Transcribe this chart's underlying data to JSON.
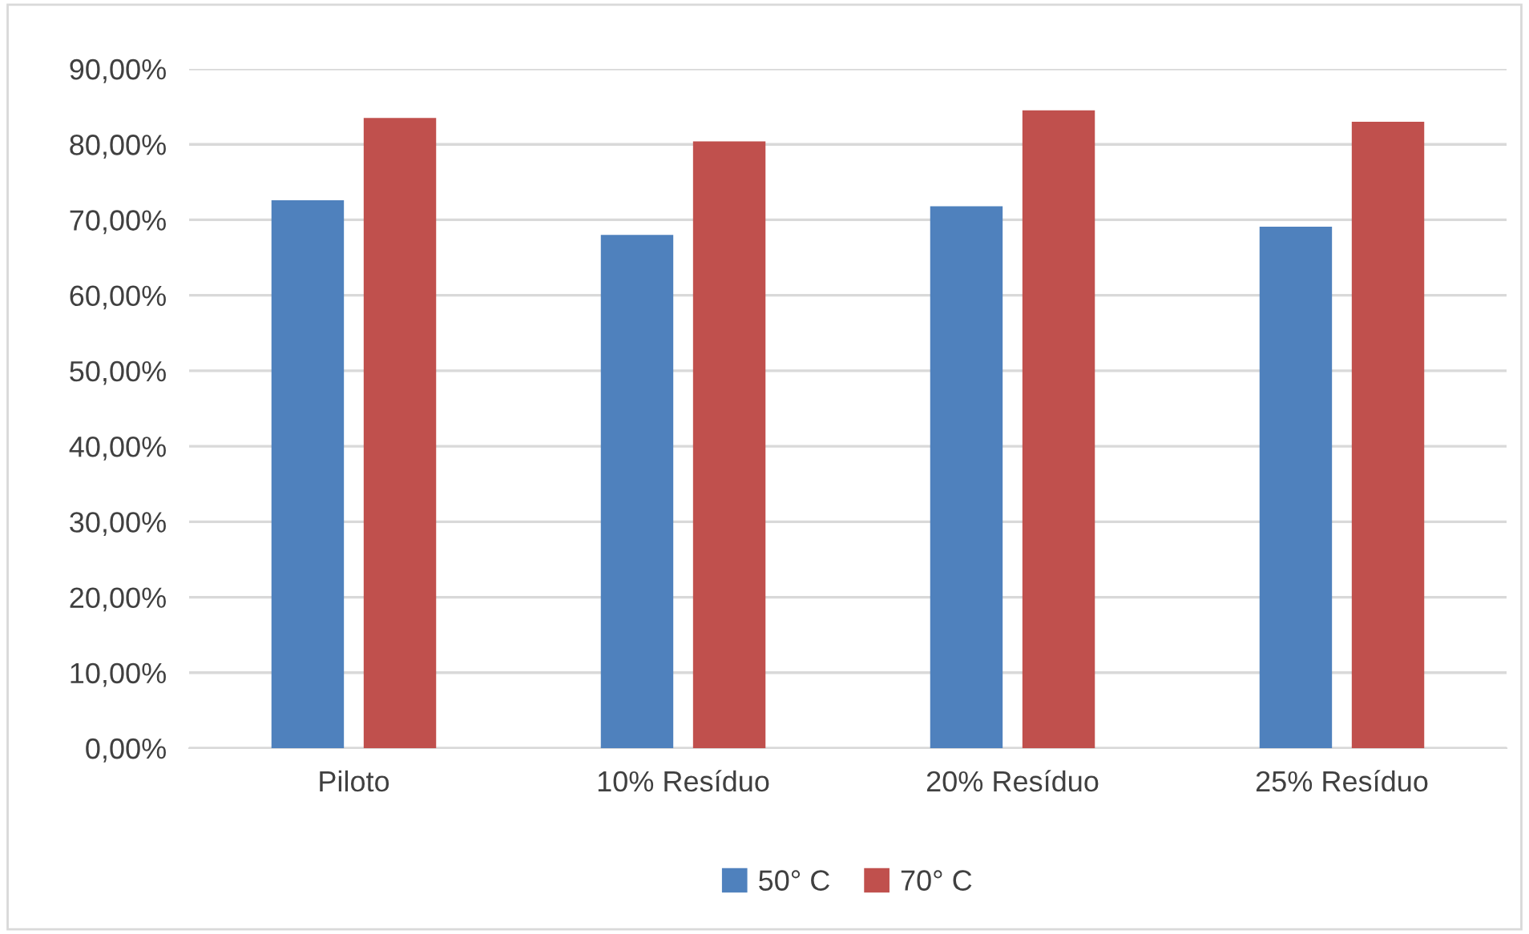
{
  "chart_data": {
    "type": "bar",
    "categories": [
      "Piloto",
      "10% Resíduo",
      "20% Resíduo",
      "25% Resíduo"
    ],
    "series": [
      {
        "name": "50° C",
        "color": "#4f81bd",
        "values": [
          72.6,
          68.0,
          71.8,
          69.1
        ]
      },
      {
        "name": "70° C",
        "color": "#c0504d",
        "values": [
          83.5,
          80.4,
          84.5,
          83.0
        ]
      }
    ],
    "ylim": [
      0,
      90
    ],
    "yticks": [
      {
        "value": 0,
        "label": "0,00%"
      },
      {
        "value": 10,
        "label": "10,00%"
      },
      {
        "value": 20,
        "label": "20,00%"
      },
      {
        "value": 30,
        "label": "30,00%"
      },
      {
        "value": 40,
        "label": "40,00%"
      },
      {
        "value": 50,
        "label": "50,00%"
      },
      {
        "value": 60,
        "label": "60,00%"
      },
      {
        "value": 70,
        "label": "70,00%"
      },
      {
        "value": 80,
        "label": "80,00%"
      },
      {
        "value": 90,
        "label": "90,00%"
      }
    ],
    "grid": "y",
    "legend": "bottom"
  }
}
